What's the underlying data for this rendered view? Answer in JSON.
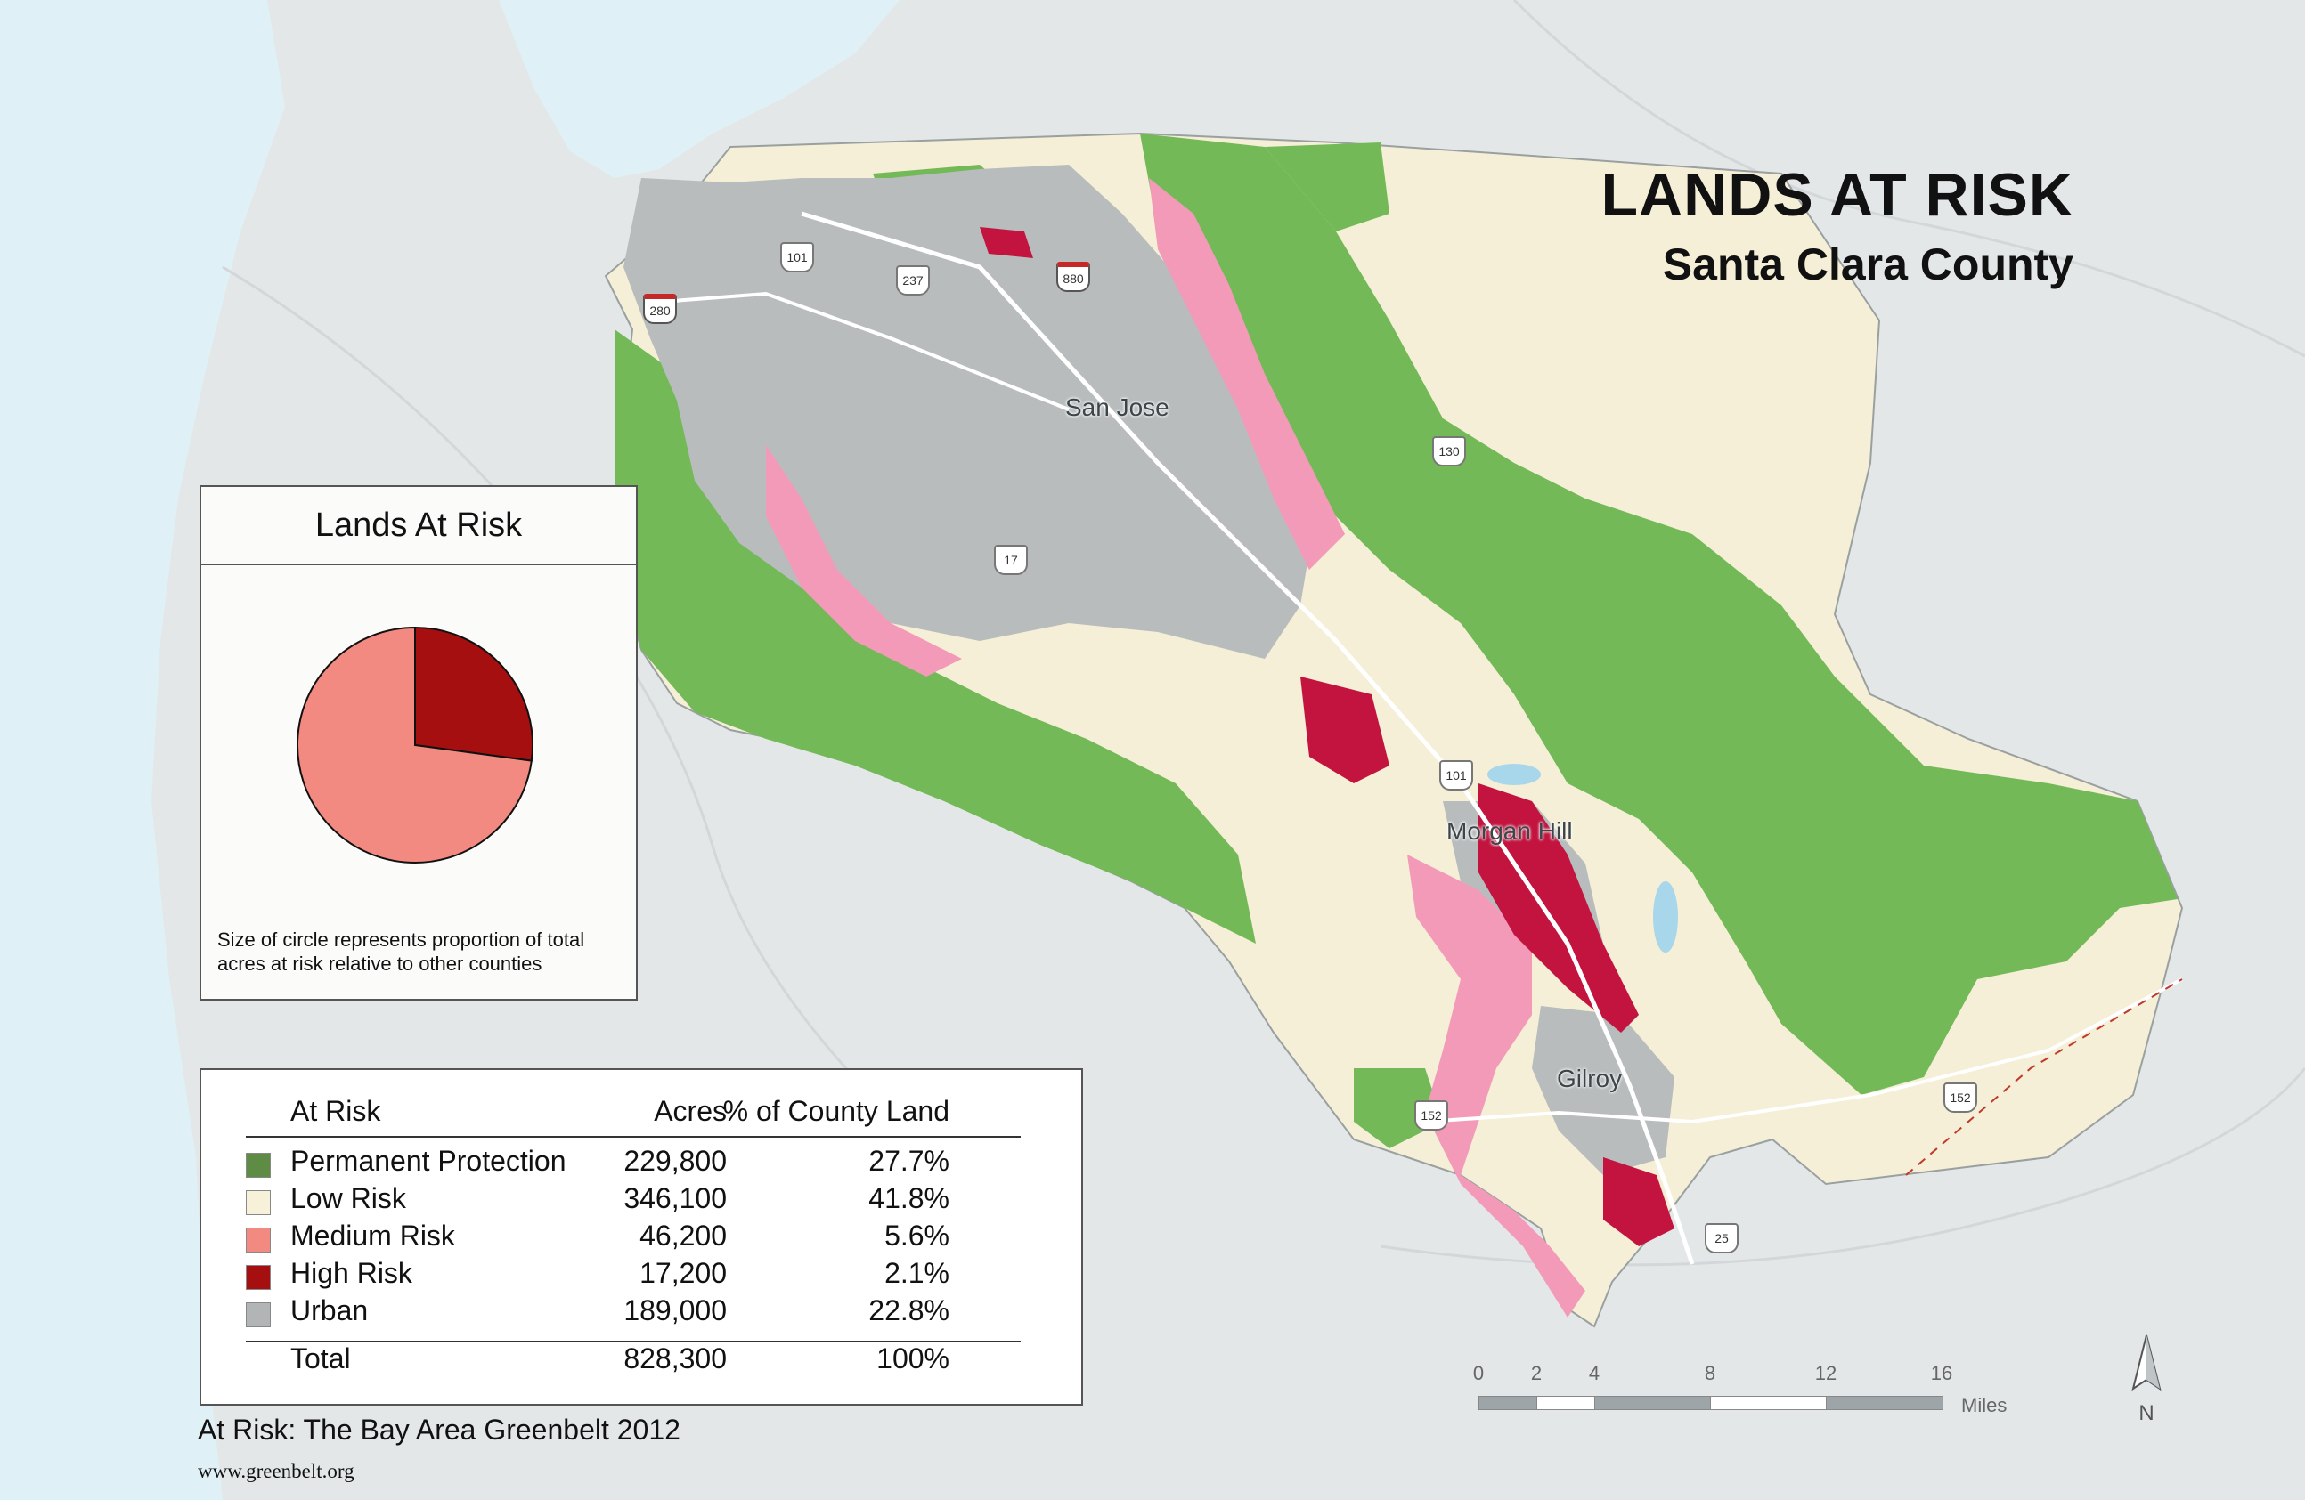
{
  "title": "LANDS AT RISK",
  "subtitle": "Santa Clara County",
  "cities": {
    "san_jose": "San Jose",
    "morgan_hill": "Morgan Hill",
    "gilroy": "Gilroy"
  },
  "highways": {
    "us101_north": "101",
    "ca237": "237",
    "i880": "880",
    "i280": "280",
    "ca17": "17",
    "ca130": "130",
    "us101_south": "101",
    "ca152_west": "152",
    "ca152_east": "152",
    "ca25": "25"
  },
  "pie_panel": {
    "title": "Lands At Risk",
    "note": "Size of circle represents proportion of total acres at risk relative to other counties"
  },
  "legend": {
    "headers": {
      "category": "At Risk",
      "acres": "Acres",
      "percent": "% of County Land"
    },
    "rows": [
      {
        "label": "Permanent Protection",
        "acres": "229,800",
        "percent": "27.7%",
        "color": "#5e8c45"
      },
      {
        "label": "Low Risk",
        "acres": "346,100",
        "percent": "41.8%",
        "color": "#f7f1d9"
      },
      {
        "label": "Medium Risk",
        "acres": "46,200",
        "percent": "5.6%",
        "color": "#f28a82"
      },
      {
        "label": "High Risk",
        "acres": "17,200",
        "percent": "2.1%",
        "color": "#a60f10"
      },
      {
        "label": "Urban",
        "acres": "189,000",
        "percent": "22.8%",
        "color": "#b2b5b6"
      }
    ],
    "total": {
      "label": "Total",
      "acres": "828,300",
      "percent": "100%"
    }
  },
  "chart_data": {
    "type": "pie",
    "title": "Lands At Risk",
    "labels": [
      "High Risk",
      "Medium Risk"
    ],
    "values": [
      17200,
      46200
    ],
    "colors": [
      "#a60f10",
      "#f28a82"
    ]
  },
  "scale_bar": {
    "ticks": [
      "0",
      "2",
      "4",
      "8",
      "12",
      "16"
    ],
    "values": [
      0,
      2,
      4,
      8,
      12,
      16
    ],
    "unit": "Miles"
  },
  "north_label": "N",
  "source": "At Risk: The Bay Area Greenbelt 2012",
  "url": "www.greenbelt.org",
  "colors": {
    "water": "#dff1f6",
    "background": "#e4e7e8",
    "urban": "#b9bcbd",
    "protected": "#74b957",
    "low": "#f4efd6",
    "medium_map": "#f39ab8",
    "high_map": "#c2143f"
  }
}
